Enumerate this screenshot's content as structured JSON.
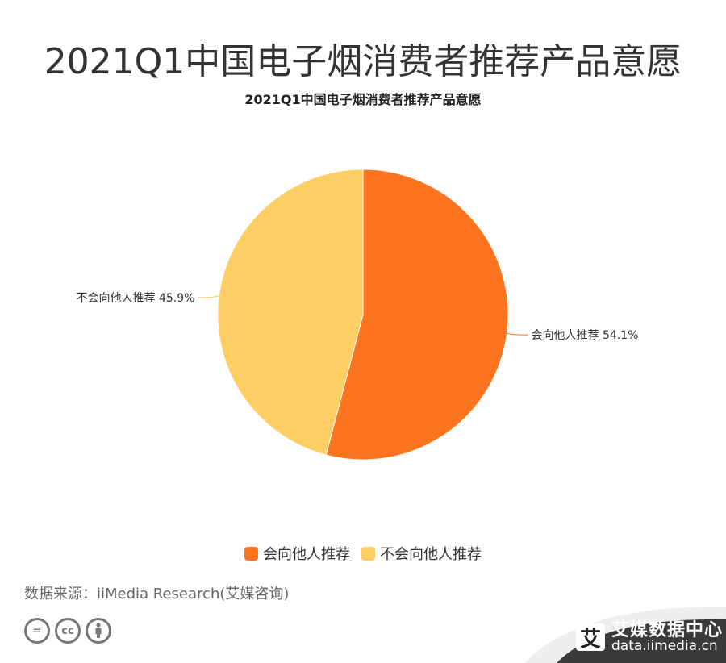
{
  "page": {
    "title": "2021Q1中国电子烟消费者推荐产品意愿",
    "source": "数据来源：iiMedia Research(艾媒咨询)"
  },
  "chart_data": {
    "type": "pie",
    "title": "2021Q1中国电子烟消费者推荐产品意愿",
    "slices": [
      {
        "label": "会向他人推荐",
        "value": 54.1,
        "display": "会向他人推荐 54.1%",
        "color": "#fc741d"
      },
      {
        "label": "不会向他人推荐",
        "value": 45.9,
        "display": "不会向他人推荐 45.9%",
        "color": "#fcce64"
      }
    ],
    "legend_position": "bottom"
  },
  "legend": {
    "items": [
      {
        "label": "会向他人推荐",
        "color": "#fc741d"
      },
      {
        "label": "不会向他人推荐",
        "color": "#fcce64"
      }
    ]
  },
  "license_badges": [
    "=",
    "cc",
    "person"
  ],
  "brand": {
    "mark": "艾",
    "name": "艾媒数据中心",
    "url": "data.iimedia.cn"
  }
}
